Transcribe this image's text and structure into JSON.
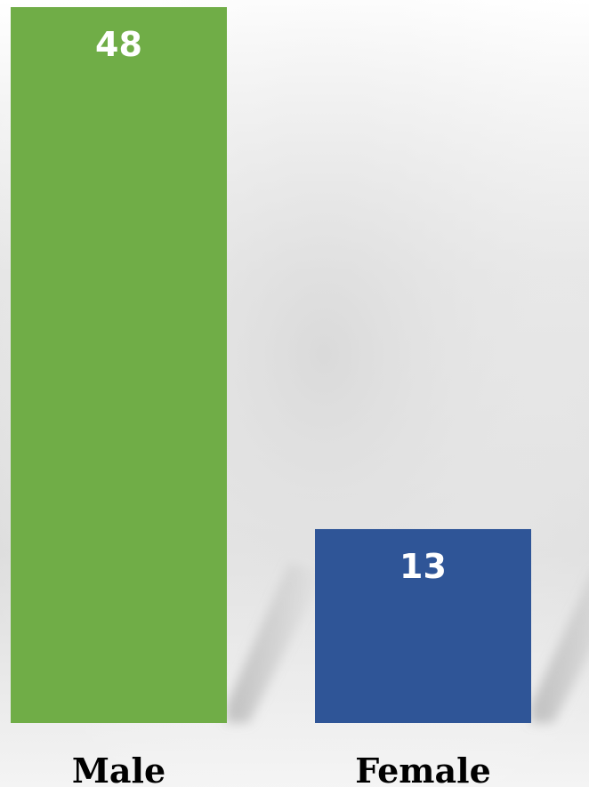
{
  "chart_data": {
    "type": "bar",
    "categories": [
      "Male",
      "Female"
    ],
    "values": [
      48,
      13
    ],
    "ylim": [
      0,
      48
    ],
    "grid": false,
    "legend": "none",
    "colors": [
      "#70AD47",
      "#2F5597"
    ],
    "data_label_color": "#FFFFFF",
    "title": "",
    "xlabel": "",
    "ylabel": ""
  }
}
